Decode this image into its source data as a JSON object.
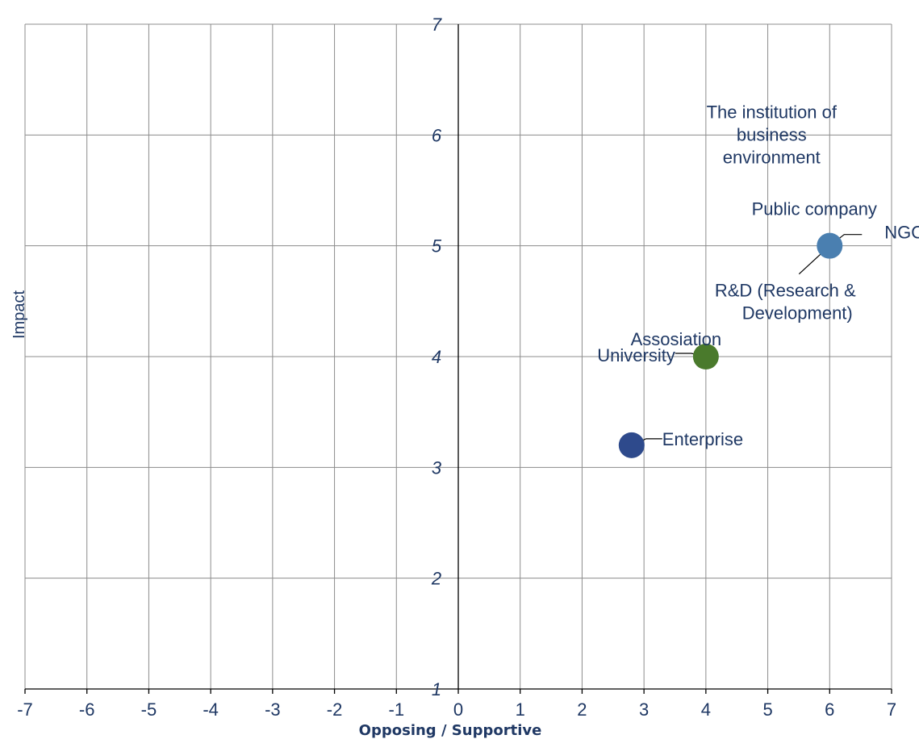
{
  "chart_data": {
    "type": "scatter",
    "title": "",
    "xlabel": "Opposing / Supportive",
    "ylabel": "Impact",
    "xlim": [
      -7,
      7
    ],
    "ylim": [
      1,
      7
    ],
    "x_ticks": [
      "-7",
      "-6",
      "-5",
      "-4",
      "-3",
      "-2",
      "-1",
      "0",
      "1",
      "2",
      "3",
      "4",
      "5",
      "6",
      "7"
    ],
    "y_ticks": [
      "1",
      "2",
      "3",
      "4",
      "5",
      "6",
      "7"
    ],
    "grid": true,
    "points": [
      {
        "x": 2.8,
        "y": 3.2,
        "color": "#2e4a8c",
        "labels": [
          "Enterprise"
        ]
      },
      {
        "x": 4,
        "y": 4,
        "color": "#4a7a2c",
        "labels": [
          "Assosiation",
          "University"
        ]
      },
      {
        "x": 6,
        "y": 5,
        "color": "#4a7fb0",
        "labels": [
          "Public company",
          "NGO",
          "R&D (Research & Development)",
          "The institution of business environment"
        ]
      }
    ],
    "annotations": [
      {
        "text": "Enterprise",
        "x": 2.8,
        "y": 3.2
      },
      {
        "text": "Assosiation",
        "x": 4,
        "y": 4
      },
      {
        "text": "University",
        "x": 4,
        "y": 4
      },
      {
        "text": "Public company",
        "x": 6,
        "y": 5
      },
      {
        "text": "NGO",
        "x": 6,
        "y": 5
      },
      {
        "text": "R&D (Research & Development)",
        "x": 6,
        "y": 5
      },
      {
        "text": "The institution of business environment",
        "x": 6,
        "y": 5
      }
    ]
  }
}
